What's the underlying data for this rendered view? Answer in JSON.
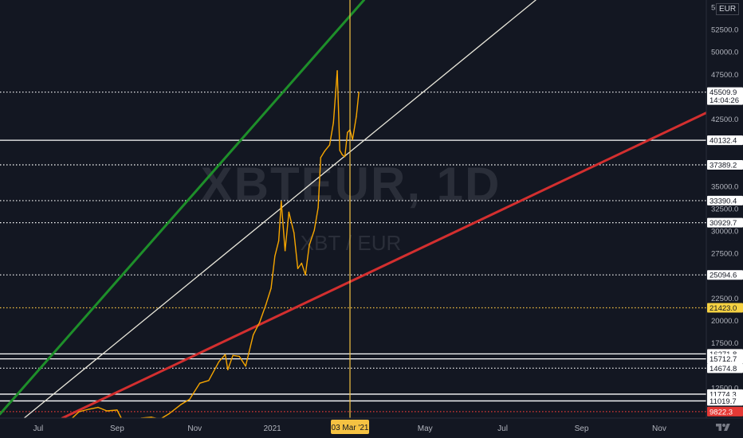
{
  "currency": "EUR",
  "watermark": {
    "symbol": "XBTEUR, 1D",
    "pair": "XBT / EUR"
  },
  "chart_data": {
    "type": "line",
    "title": "",
    "series": [
      {
        "values": [
          [
            "2020-06-01",
            8500
          ],
          [
            "2020-06-10",
            8600
          ],
          [
            "2020-06-20",
            8400
          ],
          [
            "2020-07-01",
            8200
          ],
          [
            "2020-07-10",
            8100
          ],
          [
            "2020-07-20",
            8200
          ],
          [
            "2020-07-27",
            9000
          ],
          [
            "2020-08-02",
            9800
          ],
          [
            "2020-08-10",
            10100
          ],
          [
            "2020-08-17",
            10300
          ],
          [
            "2020-08-24",
            9900
          ],
          [
            "2020-09-01",
            10000
          ],
          [
            "2020-09-05",
            8900
          ],
          [
            "2020-09-12",
            8800
          ],
          [
            "2020-09-20",
            9100
          ],
          [
            "2020-09-28",
            9200
          ],
          [
            "2020-10-05",
            9000
          ],
          [
            "2020-10-12",
            9600
          ],
          [
            "2020-10-21",
            10600
          ],
          [
            "2020-10-28",
            11200
          ],
          [
            "2020-11-05",
            13000
          ],
          [
            "2020-11-12",
            13300
          ],
          [
            "2020-11-20",
            15400
          ],
          [
            "2020-11-25",
            16200
          ],
          [
            "2020-11-27",
            14500
          ],
          [
            "2020-12-01",
            16100
          ],
          [
            "2020-12-06",
            16000
          ],
          [
            "2020-12-11",
            14900
          ],
          [
            "2020-12-17",
            18400
          ],
          [
            "2020-12-22",
            19800
          ],
          [
            "2020-12-27",
            21800
          ],
          [
            "2020-12-31",
            23600
          ],
          [
            "2021-01-03",
            27200
          ],
          [
            "2021-01-06",
            28900
          ],
          [
            "2021-01-08",
            33300
          ],
          [
            "2021-01-11",
            27800
          ],
          [
            "2021-01-14",
            32100
          ],
          [
            "2021-01-18",
            29800
          ],
          [
            "2021-01-21",
            25800
          ],
          [
            "2021-01-24",
            26400
          ],
          [
            "2021-01-27",
            25100
          ],
          [
            "2021-01-30",
            28400
          ],
          [
            "2021-02-03",
            30100
          ],
          [
            "2021-02-06",
            32600
          ],
          [
            "2021-02-08",
            38200
          ],
          [
            "2021-02-11",
            38900
          ],
          [
            "2021-02-15",
            39600
          ],
          [
            "2021-02-18",
            42100
          ],
          [
            "2021-02-21",
            47900
          ],
          [
            "2021-02-23",
            39000
          ],
          [
            "2021-02-25",
            38500
          ],
          [
            "2021-02-27",
            38300
          ],
          [
            "2021-03-01",
            41000
          ],
          [
            "2021-03-03",
            41300
          ],
          [
            "2021-03-05",
            40200
          ],
          [
            "2021-03-08",
            42800
          ],
          [
            "2021-03-10",
            45509.9
          ]
        ]
      }
    ],
    "y_axis": {
      "range": [
        9100,
        55800
      ],
      "ticks": [
        10000,
        12500,
        15000,
        17500,
        20000,
        22500,
        25000,
        27500,
        30000,
        32500,
        35000,
        37500,
        40000,
        42500,
        45000,
        47500,
        50000,
        52500,
        55000
      ],
      "tick_labels": [
        "10000.0",
        "12500.0",
        "15000.0",
        "17500.0",
        "20000.0",
        "22500.0",
        "25000.0",
        "27500.0",
        "30000.0",
        "32500.0",
        "35000.0",
        "37500.0",
        "40000.0",
        "42500.0",
        "45000.0",
        "47500.0",
        "50000.0",
        "52500.0",
        "55000.0"
      ]
    },
    "x_axis": {
      "range": [
        "2020-06-01",
        "2021-12-08"
      ],
      "ticks": [
        {
          "date": "2020-07-01",
          "label": "Jul"
        },
        {
          "date": "2020-09-01",
          "label": "Sep"
        },
        {
          "date": "2020-11-01",
          "label": "Nov"
        },
        {
          "date": "2021-01-01",
          "label": "2021"
        },
        {
          "date": "2021-05-01",
          "label": "May"
        },
        {
          "date": "2021-07-01",
          "label": "Jul"
        },
        {
          "date": "2021-09-01",
          "label": "Sep"
        },
        {
          "date": "2021-11-01",
          "label": "Nov"
        }
      ]
    },
    "horizontal_levels": [
      {
        "value": 45509.9,
        "label": "45509.9",
        "sublabel": "14:04:26",
        "style": "dotted",
        "color": "#ffffff",
        "badge_bg": "#ffffff",
        "badge_fg": "#131722"
      },
      {
        "value": 40132.4,
        "label": "40132.4",
        "style": "solid",
        "color": "#ffffff",
        "badge_bg": "#ffffff",
        "badge_fg": "#131722"
      },
      {
        "value": 37389.2,
        "label": "37389.2",
        "style": "dotted",
        "color": "#ffffff",
        "badge_bg": "#ffffff",
        "badge_fg": "#131722"
      },
      {
        "value": 33390.4,
        "label": "33390.4",
        "style": "dotted",
        "color": "#ffffff",
        "badge_bg": "#ffffff",
        "badge_fg": "#131722"
      },
      {
        "value": 30929.7,
        "label": "30929.7",
        "style": "dotted",
        "color": "#ffffff",
        "badge_bg": "#ffffff",
        "badge_fg": "#131722"
      },
      {
        "value": 25094.6,
        "label": "25094.6",
        "style": "dotted",
        "color": "#ffffff",
        "badge_bg": "#ffffff",
        "badge_fg": "#131722"
      },
      {
        "value": 21423.0,
        "label": "21423.0",
        "style": "dotted",
        "color": "#f5c242",
        "badge_bg": "#f5d142",
        "badge_fg": "#131722"
      },
      {
        "value": 16271.8,
        "label": "16271.8",
        "style": "solid",
        "color": "#ffffff",
        "badge_bg": "#ffffff",
        "badge_fg": "#131722"
      },
      {
        "value": 15712.7,
        "label": "15712.7",
        "style": "solid",
        "color": "#ffffff",
        "badge_bg": "#ffffff",
        "badge_fg": "#131722"
      },
      {
        "value": 14674.8,
        "label": "14674.8",
        "style": "dotted",
        "color": "#ffffff",
        "badge_bg": "#ffffff",
        "badge_fg": "#131722"
      },
      {
        "value": 11774.3,
        "label": "11774.3",
        "style": "solid",
        "color": "#ffffff",
        "badge_bg": "#ffffff",
        "badge_fg": "#131722"
      },
      {
        "value": 11019.7,
        "label": "11019.7",
        "style": "solid",
        "color": "#ffffff",
        "badge_bg": "#ffffff",
        "badge_fg": "#131722"
      },
      {
        "value": 9822.3,
        "label": "9822.3",
        "style": "dotted",
        "color": "#e53935",
        "badge_bg": "#e53935",
        "badge_fg": "#ffffff"
      }
    ],
    "trendlines": [
      {
        "color": "#1e8f2a",
        "points": [
          [
            "2020-06-01",
            9550
          ],
          [
            "2021-03-14",
            55800
          ]
        ]
      },
      {
        "color": "#e8e6da",
        "points": [
          [
            "2020-06-20",
            9100
          ],
          [
            "2021-07-27",
            55800
          ]
        ]
      },
      {
        "color": "#d32f2f",
        "points": [
          [
            "2020-07-20",
            9100
          ],
          [
            "2021-12-08",
            43200
          ]
        ]
      }
    ],
    "cursor": {
      "date": "2021-03-03",
      "label": "03 Mar '21",
      "color": "#f5c242"
    },
    "price_color": "#f7a600",
    "background": "#131722",
    "grid": false
  }
}
